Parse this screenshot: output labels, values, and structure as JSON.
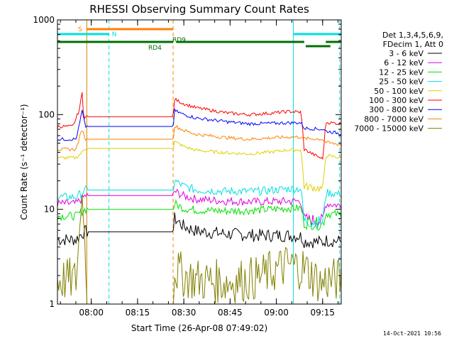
{
  "chart_data": {
    "type": "line",
    "title": "RHESSI Observing Summary Count Rates",
    "xlabel": "Start Time (26-Apr-08 07:49:02)",
    "ylabel": "Count Rate (s⁻¹ detector⁻¹)",
    "yscale": "log",
    "ylim": [
      1,
      1000
    ],
    "xlim_minutes": [
      0,
      92
    ],
    "yticks": [
      {
        "value": 1,
        "label": "1"
      },
      {
        "value": 10,
        "label": "10"
      },
      {
        "value": 100,
        "label": "100"
      },
      {
        "value": 1000,
        "label": "1000"
      }
    ],
    "xticks": [
      {
        "t": 10.97,
        "label": "08:00"
      },
      {
        "t": 25.97,
        "label": "08:15"
      },
      {
        "t": 40.97,
        "label": "08:30"
      },
      {
        "t": 55.97,
        "label": "08:45"
      },
      {
        "t": 70.97,
        "label": "09:00"
      },
      {
        "t": 85.97,
        "label": "09:15"
      }
    ],
    "legend_header": [
      "Det 1,3,4,5,6,9,",
      "FDecim 1, Att 0"
    ],
    "series": [
      {
        "name": "3 - 6 keV",
        "color": "#000000",
        "x": [
          0,
          6,
          8,
          9,
          9.5,
          37.5,
          38,
          41,
          45,
          55,
          65,
          75,
          79,
          80,
          86,
          87,
          92
        ],
        "y": [
          4.8,
          4.8,
          5.6,
          5.8,
          5.8,
          5.8,
          8,
          6.6,
          5.9,
          5.5,
          5.3,
          5.3,
          5.2,
          4.6,
          4.5,
          4.7,
          4.6
        ]
      },
      {
        "name": "6 - 12 keV",
        "color": "#e000e0",
        "x": [
          0,
          6,
          8,
          9,
          9.5,
          37.5,
          38,
          41,
          45,
          55,
          65,
          75,
          79,
          80,
          86,
          87,
          92
        ],
        "y": [
          11.5,
          11.5,
          13,
          14,
          14,
          14,
          15.5,
          13.8,
          12.8,
          12.2,
          12,
          12.2,
          12.2,
          7.8,
          7.6,
          11.5,
          11
        ]
      },
      {
        "name": "12 - 25 keV",
        "color": "#00e000",
        "x": [
          0,
          6,
          8,
          9,
          9.5,
          37.5,
          38,
          41,
          45,
          55,
          65,
          75,
          79,
          80,
          86,
          87,
          92
        ],
        "y": [
          8.5,
          8.5,
          9.5,
          10,
          10,
          10,
          11.5,
          10.2,
          9.8,
          9.6,
          9.8,
          10.3,
          10.3,
          7.3,
          7,
          9,
          8.8
        ]
      },
      {
        "name": "25 - 50 keV",
        "color": "#00e0e0",
        "x": [
          0,
          6,
          8,
          9,
          9.5,
          37.5,
          38,
          41,
          45,
          55,
          65,
          75,
          79,
          80,
          86,
          87,
          92
        ],
        "y": [
          13.5,
          13.5,
          15,
          16,
          16,
          16,
          20,
          17.5,
          16,
          15.5,
          15.5,
          16.5,
          16.5,
          7.5,
          7.3,
          15,
          14.5
        ]
      },
      {
        "name": "50 - 100 keV",
        "color": "#e0d000",
        "x": [
          0,
          6,
          8,
          9,
          9.5,
          37.5,
          38,
          41,
          45,
          55,
          62,
          70,
          75,
          79,
          80,
          86,
          87,
          92
        ],
        "y": [
          35,
          35,
          40,
          44,
          44,
          44,
          52,
          46,
          42,
          39.5,
          38.5,
          40.5,
          42.5,
          42.5,
          17.5,
          16.5,
          37,
          35
        ]
      },
      {
        "name": "100 - 300 keV",
        "color": "#ff0000",
        "x": [
          0,
          5,
          7,
          7.6,
          8,
          8.5,
          9.5,
          37.5,
          38,
          41,
          45,
          55,
          62,
          70,
          75,
          79,
          80,
          83,
          86,
          87,
          92
        ],
        "y": [
          75,
          75,
          110,
          140,
          170,
          95,
          95,
          95,
          145,
          130,
          118,
          104,
          100,
          104,
          108,
          106,
          43,
          38,
          34,
          83,
          80
        ]
      },
      {
        "name": "300 - 800 keV",
        "color": "#0000ff",
        "x": [
          0,
          6,
          7,
          8,
          9,
          9.5,
          37.5,
          38,
          41,
          45,
          55,
          62,
          70,
          75,
          79,
          80,
          86,
          87,
          92
        ],
        "y": [
          55,
          55,
          75,
          110,
          75,
          75,
          75,
          110,
          100,
          92,
          84,
          80,
          81,
          82,
          82,
          72,
          70,
          67,
          63
        ]
      },
      {
        "name": "800 - 7000 keV",
        "color": "#ff8000",
        "x": [
          0,
          6,
          7,
          8,
          9,
          9.5,
          37.5,
          38,
          41,
          45,
          55,
          62,
          70,
          75,
          79,
          80,
          86,
          87,
          92
        ],
        "y": [
          43,
          43,
          55,
          70,
          55,
          55,
          55,
          76,
          68,
          62,
          57,
          55,
          57,
          58,
          58,
          56,
          55,
          51,
          48
        ]
      },
      {
        "name": "7000 - 15000 keV",
        "color": "#808000",
        "x": [
          0,
          6,
          7,
          8,
          9,
          9.5,
          37.5,
          38,
          41,
          45,
          55,
          65,
          75,
          80,
          85,
          86,
          87,
          92
        ],
        "y": [
          1.8,
          1.8,
          5,
          14,
          4,
          1,
          1,
          2.3,
          2,
          1.8,
          1.7,
          1.9,
          2.6,
          2.4,
          1.7,
          1.6,
          1.8,
          1.8
        ]
      }
    ],
    "vlines": [
      {
        "t": 9.5,
        "color": "#d08000",
        "style": "solid"
      },
      {
        "t": 16.7,
        "color": "#00e0e0",
        "style": "dashed"
      },
      {
        "t": 37.5,
        "color": "#ff8000",
        "style": "dashed"
      },
      {
        "t": 76.5,
        "color": "#00e0e0",
        "style": "solid"
      },
      {
        "t": 91.5,
        "color": "#00e0e0",
        "style": "dashed"
      }
    ],
    "flag_bars": [
      {
        "label": "S",
        "color": "#ff8000",
        "segments": [
          [
            9.5,
            37.5
          ]
        ]
      },
      {
        "label": "N",
        "color": "#00e0e0",
        "segments": [
          [
            0,
            16.7
          ],
          [
            76.5,
            92
          ]
        ]
      },
      {
        "label": "",
        "color": "#007000",
        "segments": [
          [
            0,
            37.5
          ],
          [
            38.5,
            80
          ],
          [
            87,
            92
          ]
        ]
      },
      {
        "label": "",
        "color": "#007000",
        "segments": [
          [
            80.5,
            88.5
          ]
        ]
      }
    ],
    "annotations": [
      "RD4",
      "RD9"
    ]
  },
  "timestamp": "14-Oct-2021 10:56"
}
